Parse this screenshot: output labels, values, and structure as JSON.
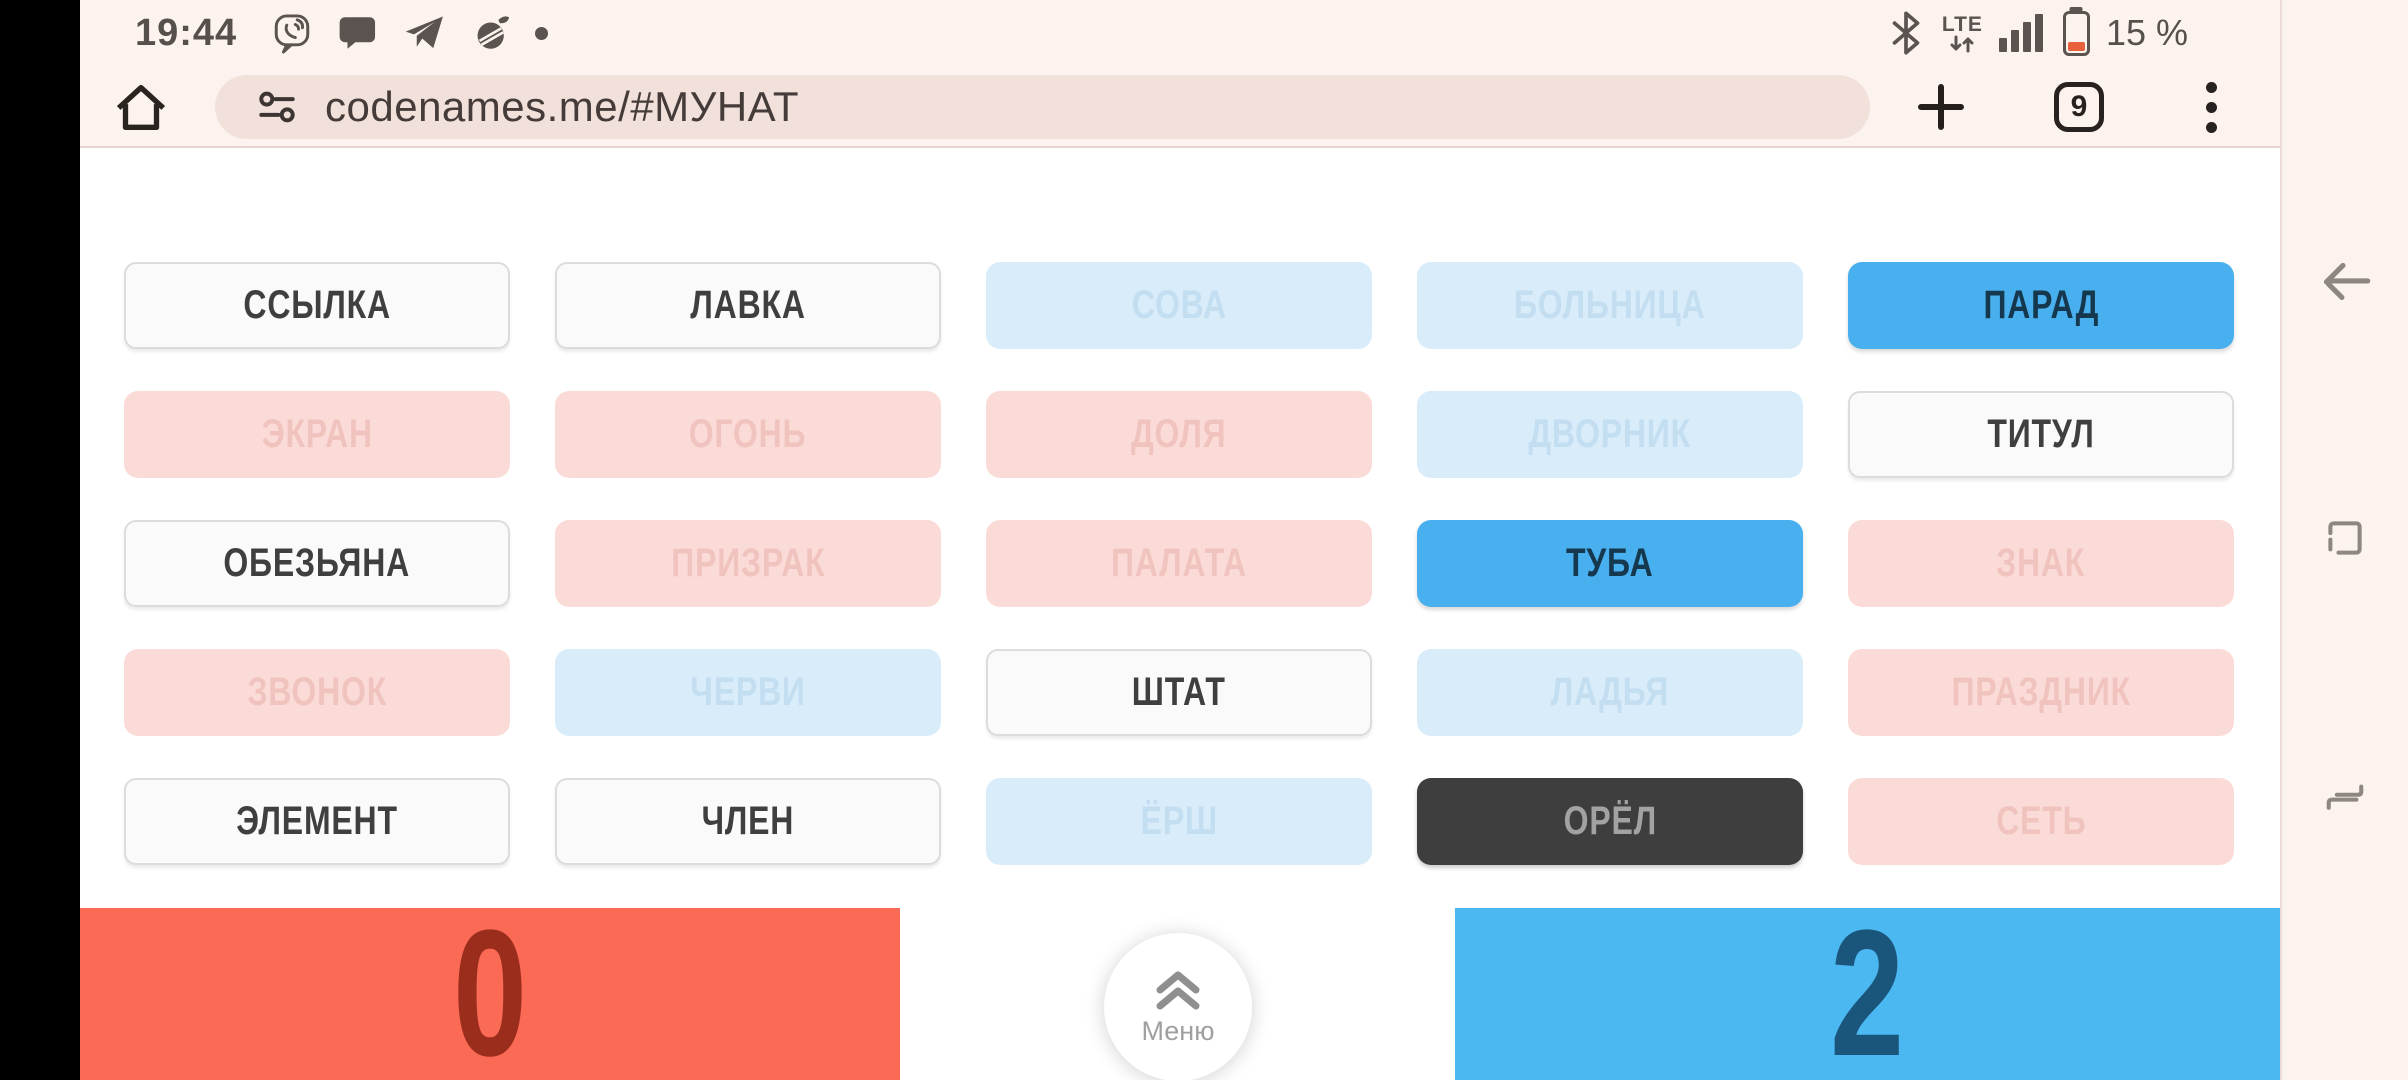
{
  "status_bar": {
    "time": "19:44",
    "network_label": "LTE",
    "battery_percent": "15 %",
    "left_icon_names": [
      "viber-icon",
      "messages-icon",
      "telegram-icon",
      "browser-icon",
      "notification-dot"
    ],
    "right_icon_names": [
      "bluetooth-icon",
      "lte-icon",
      "signal-icon",
      "battery-icon"
    ]
  },
  "browser": {
    "url": "codenames.me/#МУНАТ",
    "tab_count": "9",
    "icon_names": [
      "home-icon",
      "tune-icon",
      "new-tab-icon",
      "tab-switcher",
      "kebab-menu-icon"
    ]
  },
  "nav_bar": {
    "icon_names": [
      "back-icon",
      "home-square-icon",
      "recents-icon"
    ]
  },
  "board": {
    "cards": [
      {
        "label": "ССЫЛКА",
        "state": "neutral"
      },
      {
        "label": "ЛАВКА",
        "state": "neutral"
      },
      {
        "label": "СОВА",
        "state": "blue-faded"
      },
      {
        "label": "БОЛЬНИЦА",
        "state": "blue-faded"
      },
      {
        "label": "ПАРАД",
        "state": "blue"
      },
      {
        "label": "ЭКРАН",
        "state": "red-faded"
      },
      {
        "label": "ОГОНЬ",
        "state": "red-faded"
      },
      {
        "label": "ДОЛЯ",
        "state": "red-faded"
      },
      {
        "label": "ДВОРНИК",
        "state": "blue-faded"
      },
      {
        "label": "ТИТУЛ",
        "state": "neutral"
      },
      {
        "label": "ОБЕЗЬЯНА",
        "state": "neutral"
      },
      {
        "label": "ПРИЗРАК",
        "state": "red-faded"
      },
      {
        "label": "ПАЛАТА",
        "state": "red-faded"
      },
      {
        "label": "ТУБА",
        "state": "blue"
      },
      {
        "label": "ЗНАК",
        "state": "red-faded"
      },
      {
        "label": "ЗВОНОК",
        "state": "red-faded"
      },
      {
        "label": "ЧЕРВИ",
        "state": "blue-faded"
      },
      {
        "label": "ШТАТ",
        "state": "neutral"
      },
      {
        "label": "ЛАДЬЯ",
        "state": "blue-faded"
      },
      {
        "label": "ПРАЗДНИК",
        "state": "red-faded"
      },
      {
        "label": "ЭЛЕМЕНТ",
        "state": "neutral"
      },
      {
        "label": "ЧЛЕН",
        "state": "neutral"
      },
      {
        "label": "ЁРШ",
        "state": "blue-faded"
      },
      {
        "label": "ОРЁЛ",
        "state": "black"
      },
      {
        "label": "СЕТЬ",
        "state": "red-faded"
      }
    ]
  },
  "score": {
    "red_score": "0",
    "blue_score": "2",
    "menu": {
      "label": "Меню",
      "icon": "chevron-double-up-icon"
    }
  },
  "colors": {
    "page_bg": "#fcf2ee",
    "bezel": "#000000",
    "divider": "#e7d6d0",
    "content_bg": "#ffffff",
    "url_pill_bg": "#f2e1db",
    "url_text": "#453c39",
    "status_text": "#56504d",
    "icon_dark": "#272120",
    "icon_gray": "#8d8681",
    "battery_low": "#e8603c",
    "card_neutral_bg": "#fafafa",
    "card_neutral_border": "#dcdcdc",
    "card_neutral_text": "#3f3f3f",
    "card_red_faded_bg": "#fbdbd7",
    "card_red_faded_text": "#f0c3be",
    "card_blue_faded_bg": "#d9ecfa",
    "card_blue_faded_text": "#c3ddf1",
    "card_blue_bg": "#48b0ee",
    "card_blue_text": "#16384e",
    "card_black_bg": "#3e3e3e",
    "card_black_text": "#a2a2a2",
    "score_red_bg": "#fb6a55",
    "score_red_text": "#9b2d1c",
    "score_blue_bg": "#4bb8f1",
    "score_blue_text": "#1a567c",
    "menu_label_gray": "#9f9f9f"
  }
}
